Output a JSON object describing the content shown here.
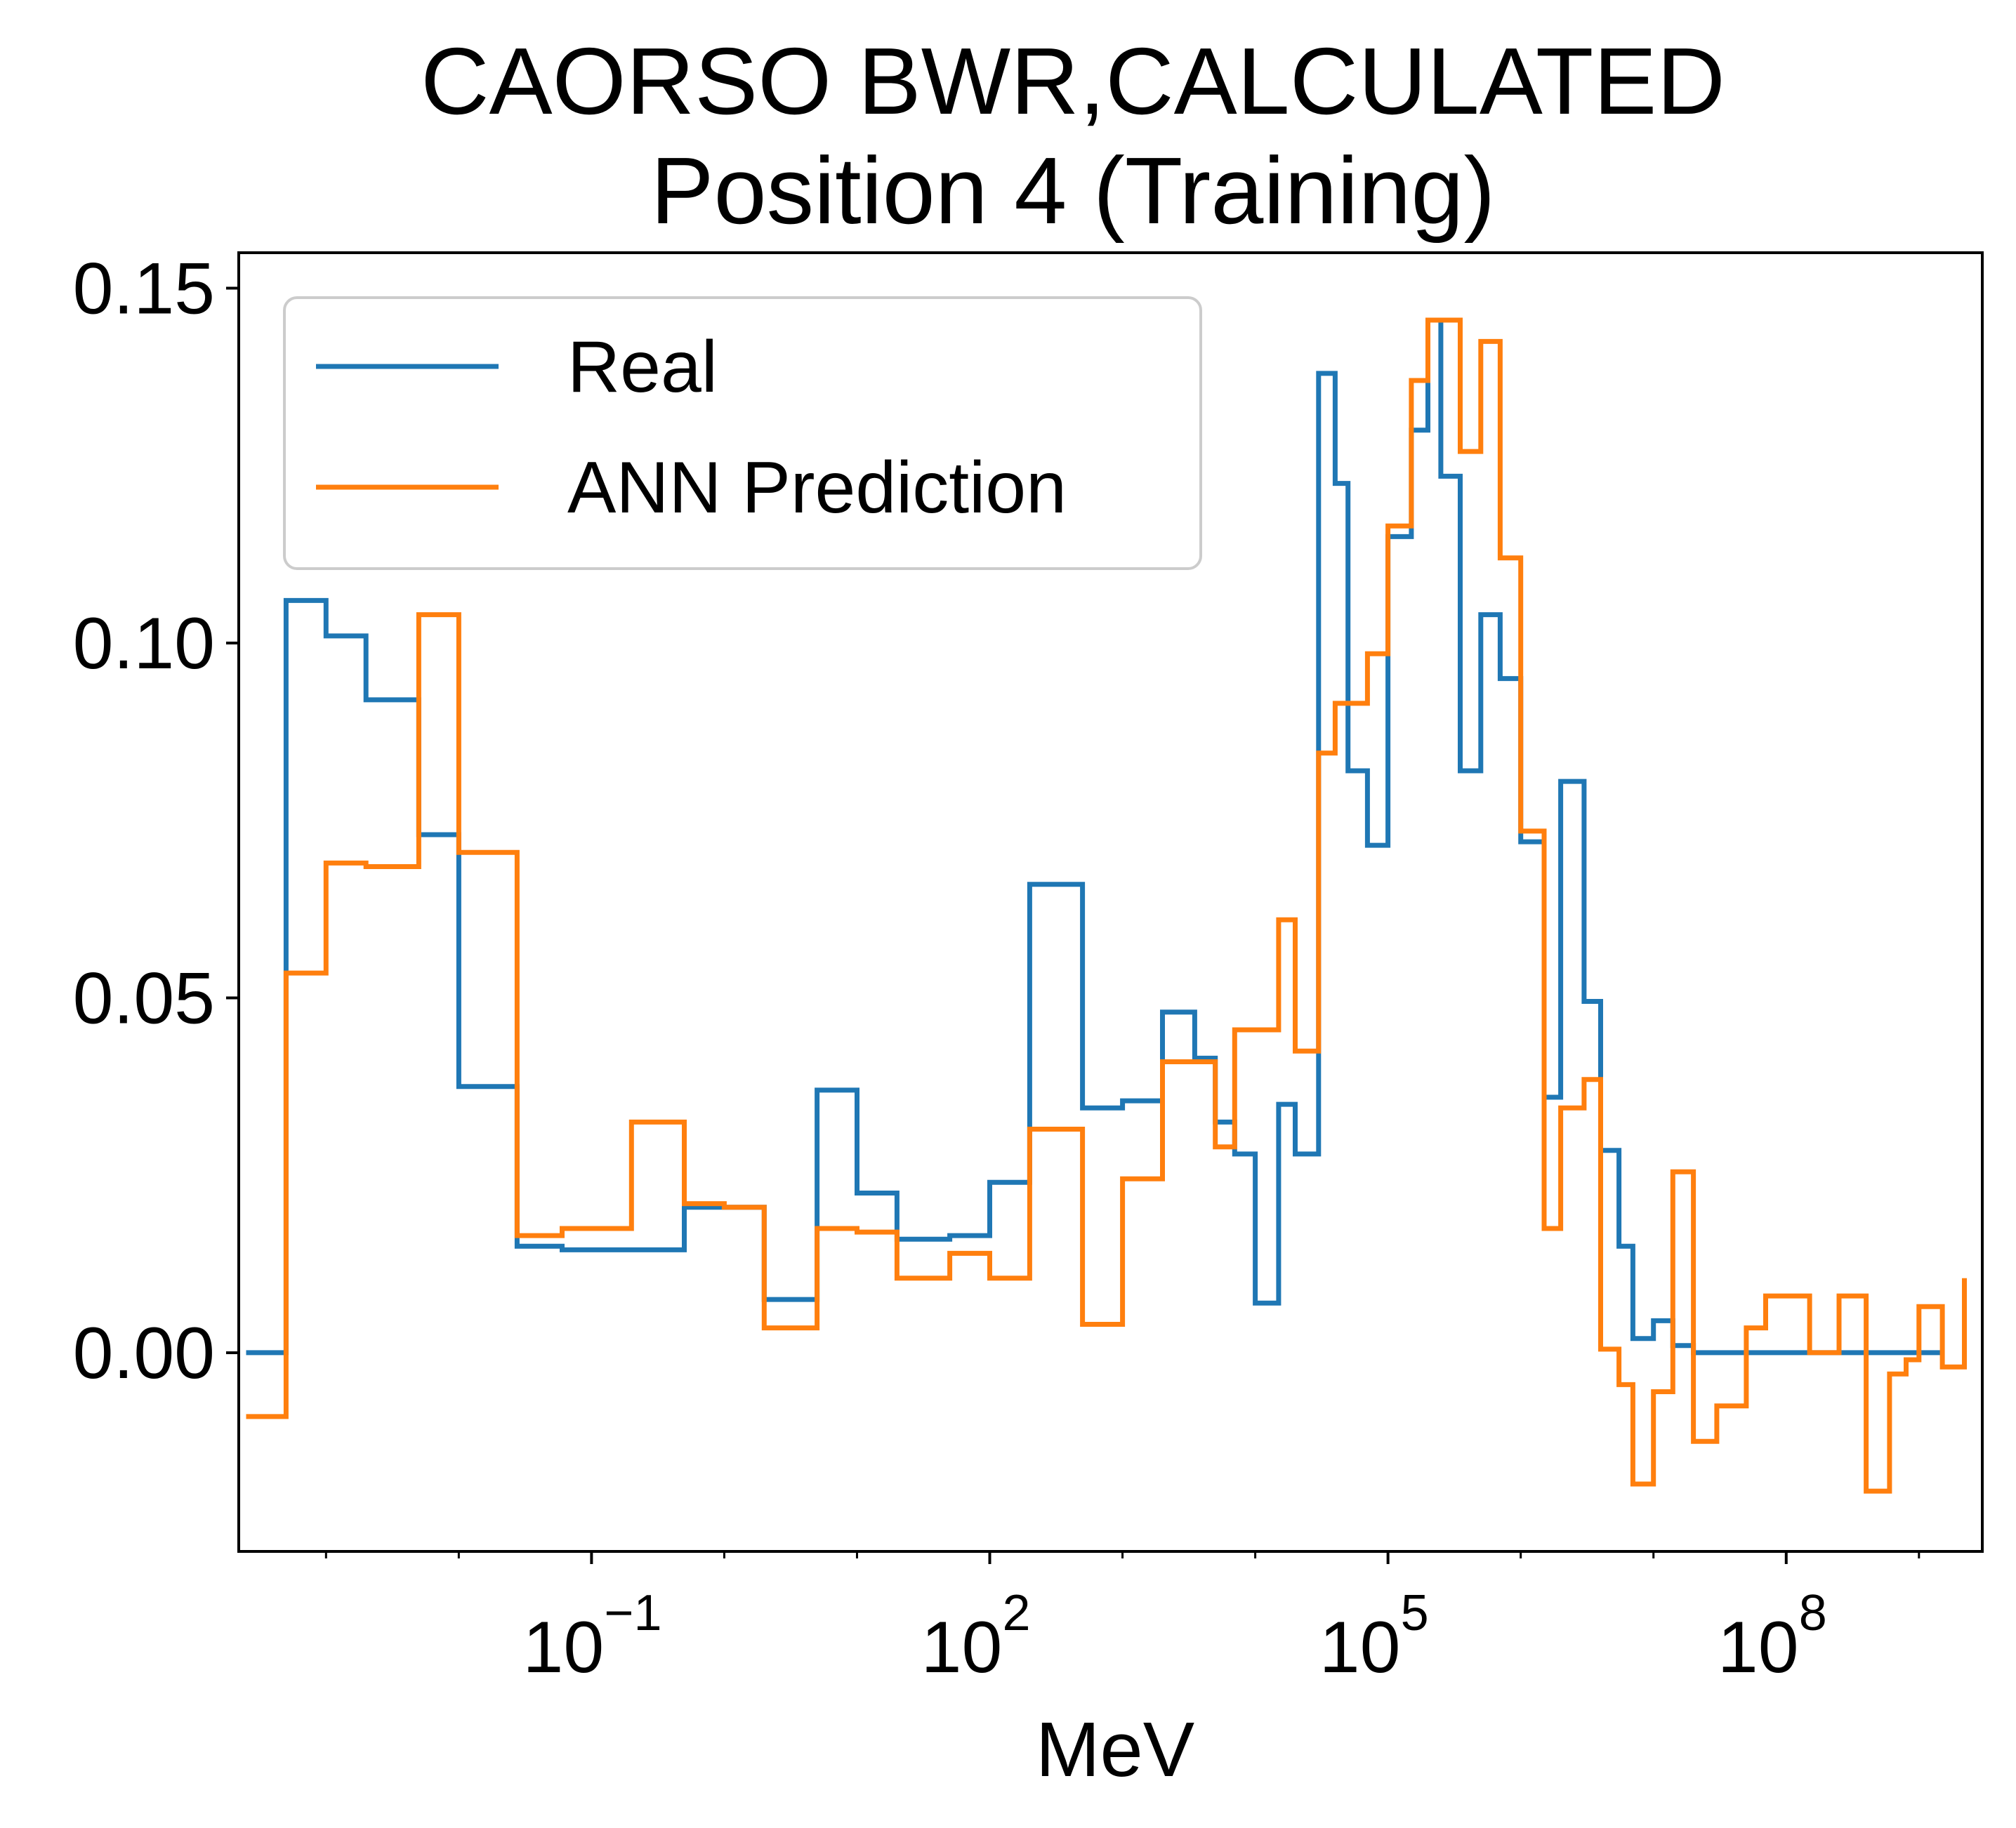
{
  "chart_data": {
    "type": "line",
    "drawstyle": "steps-post",
    "title_lines": [
      "CAORSO BWR,CALCULATED",
      "Position 4 (Training)"
    ],
    "xlabel": "MeV",
    "ylabel": "",
    "xscale": "log",
    "xlim": [
      0.00022,
      3000000000.0
    ],
    "ylim": [
      -0.028,
      0.155
    ],
    "x_ticks": [
      {
        "value": 0.1,
        "base": "10",
        "exp": "−1"
      },
      {
        "value": 100,
        "base": "10",
        "exp": "2"
      },
      {
        "value": 100000,
        "base": "10",
        "exp": "5"
      },
      {
        "value": 100000000,
        "base": "10",
        "exp": "8"
      }
    ],
    "y_ticks": [
      {
        "value": 0.0,
        "label": "0.00"
      },
      {
        "value": 0.05,
        "label": "0.05"
      },
      {
        "value": 0.1,
        "label": "0.10"
      },
      {
        "value": 0.15,
        "label": "0.15"
      }
    ],
    "grid": false,
    "legend_position": "top-left",
    "colors": {
      "real": "#1f77b4",
      "ann": "#ff7f0e"
    },
    "series": [
      {
        "name": "Real",
        "color": "#1f77b4",
        "points": [
          [
            0.00025,
            0.0
          ],
          [
            0.0005,
            0.106
          ],
          [
            0.001,
            0.101
          ],
          [
            0.002,
            0.092
          ],
          [
            0.005,
            0.073
          ],
          [
            0.01,
            0.0375
          ],
          [
            0.0275,
            0.015
          ],
          [
            0.06,
            0.0145
          ],
          [
            0.1,
            0.0145
          ],
          [
            0.2,
            0.0145
          ],
          [
            0.5,
            0.0205
          ],
          [
            1.0,
            0.0205
          ],
          [
            2.0,
            0.0075
          ],
          [
            5.0,
            0.037
          ],
          [
            10.0,
            0.0225
          ],
          [
            20.0,
            0.016
          ],
          [
            50.0,
            0.0165
          ],
          [
            100.0,
            0.024
          ],
          [
            200.0,
            0.066
          ],
          [
            500.0,
            0.0345
          ],
          [
            1000.0,
            0.0355
          ],
          [
            2000.0,
            0.048
          ],
          [
            3500.0,
            0.0415
          ],
          [
            5000.0,
            0.0325
          ],
          [
            7000.0,
            0.028
          ],
          [
            10000.0,
            0.007
          ],
          [
            15000.0,
            0.035
          ],
          [
            20000.0,
            0.028
          ],
          [
            30000.0,
            0.138
          ],
          [
            40000.0,
            0.1225
          ],
          [
            50000.0,
            0.082
          ],
          [
            70000.0,
            0.0715
          ],
          [
            100000.0,
            0.115
          ],
          [
            150000.0,
            0.13
          ],
          [
            200000.0,
            0.1455
          ],
          [
            250000.0,
            0.1235
          ],
          [
            350000.0,
            0.082
          ],
          [
            500000.0,
            0.104
          ],
          [
            700000.0,
            0.095
          ],
          [
            1000000.0,
            0.072
          ],
          [
            1500000.0,
            0.036
          ],
          [
            2000000.0,
            0.0805
          ],
          [
            3000000.0,
            0.0495
          ],
          [
            4000000.0,
            0.0285
          ],
          [
            5500000.0,
            0.015
          ],
          [
            7000000.0,
            0.002
          ],
          [
            10000000.0,
            0.0045
          ],
          [
            14000000.0,
            0.001
          ],
          [
            20000000.0,
            0.0
          ],
          [
            50000000.0,
            0.0
          ],
          [
            100000000.0,
            0.0
          ],
          [
            1000000000.0,
            0.0
          ],
          [
            1500000000.0,
            0.0
          ]
        ]
      },
      {
        "name": "ANN Prediction",
        "color": "#ff7f0e",
        "points": [
          [
            0.00025,
            -0.009
          ],
          [
            0.0005,
            0.0535
          ],
          [
            0.001,
            0.069
          ],
          [
            0.002,
            0.0685
          ],
          [
            0.005,
            0.104
          ],
          [
            0.01,
            0.0705
          ],
          [
            0.0275,
            0.0165
          ],
          [
            0.06,
            0.0175
          ],
          [
            0.2,
            0.0325
          ],
          [
            0.5,
            0.021
          ],
          [
            1.0,
            0.0205
          ],
          [
            2.0,
            0.0035
          ],
          [
            5.0,
            0.0175
          ],
          [
            10.0,
            0.017
          ],
          [
            20.0,
            0.0105
          ],
          [
            50.0,
            0.014
          ],
          [
            100.0,
            0.0105
          ],
          [
            200.0,
            0.0315
          ],
          [
            500.0,
            0.004
          ],
          [
            1000.0,
            0.0245
          ],
          [
            2000.0,
            0.041
          ],
          [
            5000.0,
            0.029
          ],
          [
            7000.0,
            0.0455
          ],
          [
            10000.0,
            0.0455
          ],
          [
            15000.0,
            0.061
          ],
          [
            20000.0,
            0.0425
          ],
          [
            30000.0,
            0.0845
          ],
          [
            40000.0,
            0.0915
          ],
          [
            70000.0,
            0.0985
          ],
          [
            100000.0,
            0.1165
          ],
          [
            150000.0,
            0.137
          ],
          [
            200000.0,
            0.1455
          ],
          [
            250000.0,
            0.1455
          ],
          [
            350000.0,
            0.127
          ],
          [
            500000.0,
            0.1425
          ],
          [
            700000.0,
            0.112
          ],
          [
            1000000.0,
            0.0735
          ],
          [
            1500000.0,
            0.0175
          ],
          [
            2000000.0,
            0.0345
          ],
          [
            3000000.0,
            0.0385
          ],
          [
            4000000.0,
            0.0005
          ],
          [
            5500000.0,
            -0.0045
          ],
          [
            7000000.0,
            -0.0185
          ],
          [
            10000000.0,
            -0.0055
          ],
          [
            14000000.0,
            0.0255
          ],
          [
            20000000.0,
            -0.0125
          ],
          [
            30000000.0,
            -0.0075
          ],
          [
            50000000.0,
            0.0035
          ],
          [
            70000000.0,
            0.008
          ],
          [
            150000000.0,
            0.0
          ],
          [
            250000000.0,
            0.008
          ],
          [
            400000000.0,
            -0.0195
          ],
          [
            600000000.0,
            -0.003
          ],
          [
            800000000.0,
            -0.001
          ],
          [
            1000000000.0,
            0.0065
          ],
          [
            1500000000.0,
            -0.002
          ],
          [
            2200000000.0,
            0.0105
          ]
        ]
      }
    ]
  }
}
